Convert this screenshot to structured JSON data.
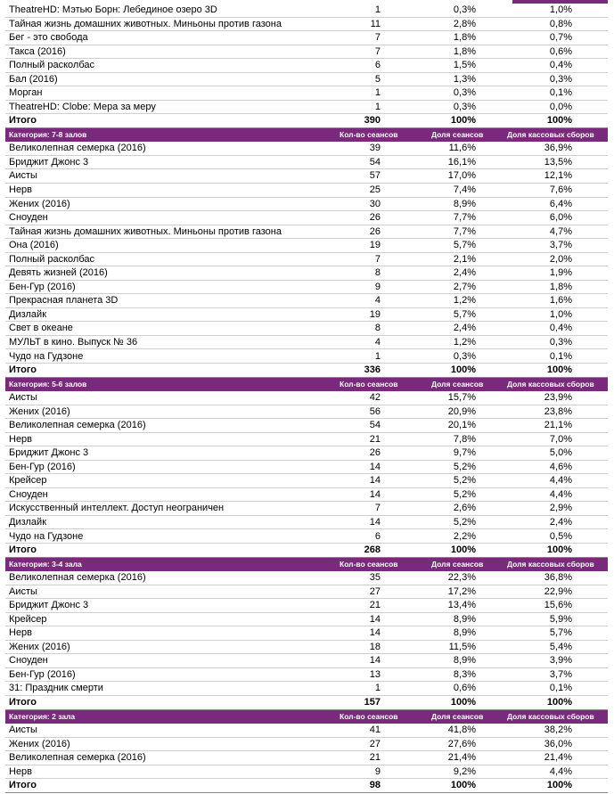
{
  "sections": [
    {
      "rows": [
        [
          "TheatreHD: Мэтью Борн: Лебединое озеро 3D",
          1,
          "0,3%",
          "1,0%"
        ],
        [
          "Тайная жизнь домашних животных. Миньоны против газона",
          11,
          "2,8%",
          "0,8%"
        ],
        [
          "Бег - это свобода",
          7,
          "1,8%",
          "0,7%"
        ],
        [
          "Такса (2016)",
          7,
          "1,8%",
          "0,6%"
        ],
        [
          "Полный расколбас",
          6,
          "1,5%",
          "0,4%"
        ],
        [
          "Бал (2016)",
          5,
          "1,3%",
          "0,3%"
        ],
        [
          "Морган",
          1,
          "0,3%",
          "0,1%"
        ],
        [
          "TheatreHD: Clobe: Мера за меру",
          1,
          "0,3%",
          "0,0%"
        ]
      ],
      "total": [
        "Итого",
        390,
        "100%",
        "100%"
      ]
    },
    {
      "header": [
        "Категория: 7-8 залов",
        "Кол-во сеансов",
        "Доля сеансов",
        "Доля кассовых сборов"
      ],
      "rows": [
        [
          "Великолепная семерка (2016)",
          39,
          "11,6%",
          "36,9%"
        ],
        [
          "Бриджит Джонс 3",
          54,
          "16,1%",
          "13,5%"
        ],
        [
          "Аисты",
          57,
          "17,0%",
          "12,1%"
        ],
        [
          "Нерв",
          25,
          "7,4%",
          "7,6%"
        ],
        [
          "Жених (2016)",
          30,
          "8,9%",
          "6,4%"
        ],
        [
          "Сноуден",
          26,
          "7,7%",
          "6,0%"
        ],
        [
          "Тайная жизнь домашних животных. Миньоны против газона",
          26,
          "7,7%",
          "4,7%"
        ],
        [
          "Она (2016)",
          19,
          "5,7%",
          "3,7%"
        ],
        [
          "Полный расколбас",
          7,
          "2,1%",
          "2,0%"
        ],
        [
          "Девять жизней (2016)",
          8,
          "2,4%",
          "1,9%"
        ],
        [
          "Бен-Гур (2016)",
          9,
          "2,7%",
          "1,8%"
        ],
        [
          "Прекрасная планета 3D",
          4,
          "1,2%",
          "1,6%"
        ],
        [
          "Дизлайк",
          19,
          "5,7%",
          "1,0%"
        ],
        [
          "Свет в океане",
          8,
          "2,4%",
          "0,4%"
        ],
        [
          "МУЛЬТ в кино. Выпуск № 36",
          4,
          "1,2%",
          "0,3%"
        ],
        [
          "Чудо на Гудзоне",
          1,
          "0,3%",
          "0,1%"
        ]
      ],
      "total": [
        "Итого",
        336,
        "100%",
        "100%"
      ]
    },
    {
      "header": [
        "Категория: 5-6 залов",
        "Кол-во сеансов",
        "Доля сеансов",
        "Доля кассовых сборов"
      ],
      "rows": [
        [
          "Аисты",
          42,
          "15,7%",
          "23,9%"
        ],
        [
          "Жених (2016)",
          56,
          "20,9%",
          "23,8%"
        ],
        [
          "Великолепная семерка (2016)",
          54,
          "20,1%",
          "21,1%"
        ],
        [
          "Нерв",
          21,
          "7,8%",
          "7,0%"
        ],
        [
          "Бриджит Джонс 3",
          26,
          "9,7%",
          "5,0%"
        ],
        [
          "Бен-Гур (2016)",
          14,
          "5,2%",
          "4,6%"
        ],
        [
          "Крейсер",
          14,
          "5,2%",
          "4,4%"
        ],
        [
          "Сноуден",
          14,
          "5,2%",
          "4,4%"
        ],
        [
          "Искусственный интеллект. Доступ неограничен",
          7,
          "2,6%",
          "2,9%"
        ],
        [
          "Дизлайк",
          14,
          "5,2%",
          "2,4%"
        ],
        [
          "Чудо на Гудзоне",
          6,
          "2,2%",
          "0,5%"
        ]
      ],
      "total": [
        "Итого",
        268,
        "100%",
        "100%"
      ]
    },
    {
      "header": [
        "Категория: 3-4 зала",
        "Кол-во сеансов",
        "Доля сеансов",
        "Доля кассовых сборов"
      ],
      "rows": [
        [
          "Великолепная семерка (2016)",
          35,
          "22,3%",
          "36,8%"
        ],
        [
          "Аисты",
          27,
          "17,2%",
          "22,9%"
        ],
        [
          "Бриджит Джонс 3",
          21,
          "13,4%",
          "15,6%"
        ],
        [
          "Крейсер",
          14,
          "8,9%",
          "5,9%"
        ],
        [
          "Нерв",
          14,
          "8,9%",
          "5,7%"
        ],
        [
          "Жених (2016)",
          18,
          "11,5%",
          "5,4%"
        ],
        [
          "Сноуден",
          14,
          "8,9%",
          "3,9%"
        ],
        [
          "Бен-Гур (2016)",
          13,
          "8,3%",
          "3,7%"
        ],
        [
          "31: Праздник смерти",
          1,
          "0,6%",
          "0,1%"
        ]
      ],
      "total": [
        "Итого",
        157,
        "100%",
        "100%"
      ]
    },
    {
      "header": [
        "Категория: 2 зала",
        "Кол-во сеансов",
        "Доля сеансов",
        "Доля кассовых сборов"
      ],
      "rows": [
        [
          "Аисты",
          41,
          "41,8%",
          "38,2%"
        ],
        [
          "Жених (2016)",
          27,
          "27,6%",
          "36,0%"
        ],
        [
          "Великолепная семерка (2016)",
          21,
          "21,4%",
          "21,4%"
        ],
        [
          "Нерв",
          9,
          "9,2%",
          "4,4%"
        ]
      ],
      "total": [
        "Итого",
        98,
        "100%",
        "100%"
      ]
    }
  ]
}
